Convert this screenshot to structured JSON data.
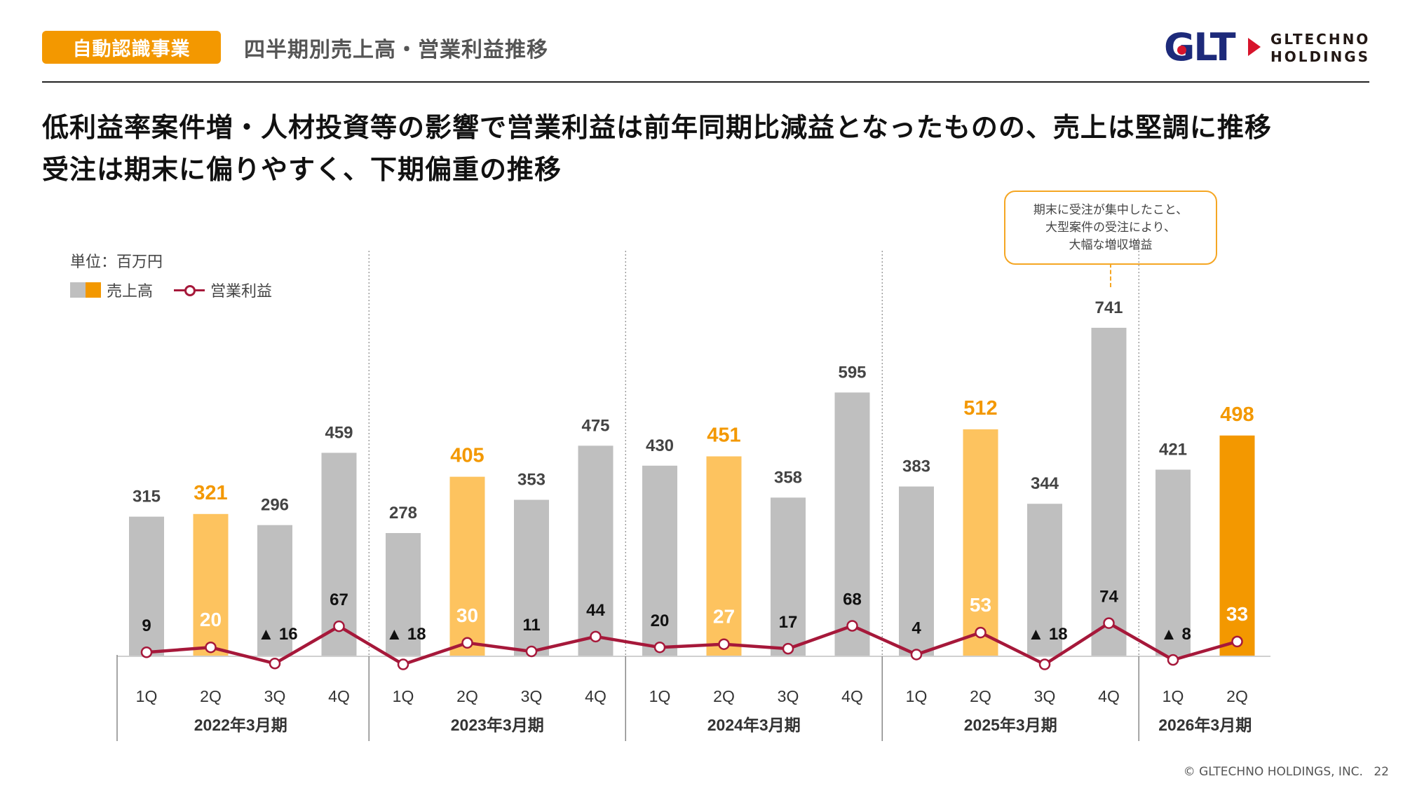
{
  "header": {
    "badge": "自動認識事業",
    "section_title": "四半期別売上高・営業利益推移",
    "logo_mark": "GLT",
    "logo_text_line1": "GLTECHNO",
    "logo_text_line2": "HOLDINGS"
  },
  "headline": {
    "line1": "低利益率案件増・人材投資等の影響で営業利益は前年同期比減益となったものの、売上は堅調に推移",
    "line2": "受注は期末に偏りやすく、下期偏重の推移"
  },
  "callout": {
    "line1": "期末に受注が集中したこと、",
    "line2": "大型案件の受注により、",
    "line3": "大幅な増収増益"
  },
  "colors": {
    "accent": "#f39800",
    "bar_gray": "#bfbfbf",
    "bar_light_orange": "#fdc35f",
    "bar_orange": "#f39800",
    "line": "#a6183a",
    "orange_label": "#f39800"
  },
  "chart_data": {
    "type": "bar",
    "title": "四半期別売上高・営業利益推移",
    "unit_label": "単位：百万円",
    "legend": [
      {
        "name": "売上高",
        "kind": "bar"
      },
      {
        "name": "営業利益",
        "kind": "line"
      }
    ],
    "groups": [
      {
        "label": "2022年3月期",
        "quarters": [
          "1Q",
          "2Q",
          "3Q",
          "4Q"
        ]
      },
      {
        "label": "2023年3月期",
        "quarters": [
          "1Q",
          "2Q",
          "3Q",
          "4Q"
        ]
      },
      {
        "label": "2024年3月期",
        "quarters": [
          "1Q",
          "2Q",
          "3Q",
          "4Q"
        ]
      },
      {
        "label": "2025年3月期",
        "quarters": [
          "1Q",
          "2Q",
          "3Q",
          "4Q"
        ]
      },
      {
        "label": "2026年3月期",
        "quarters": [
          "1Q",
          "2Q"
        ]
      }
    ],
    "categories": [
      "1Q",
      "2Q",
      "3Q",
      "4Q",
      "1Q",
      "2Q",
      "3Q",
      "4Q",
      "1Q",
      "2Q",
      "3Q",
      "4Q",
      "1Q",
      "2Q",
      "3Q",
      "4Q",
      "1Q",
      "2Q"
    ],
    "series": [
      {
        "name": "売上高",
        "type": "bar",
        "values": [
          315,
          321,
          296,
          459,
          278,
          405,
          353,
          475,
          430,
          451,
          358,
          595,
          383,
          512,
          344,
          741,
          421,
          498
        ],
        "highlight": [
          "none",
          "light",
          "none",
          "none",
          "none",
          "light",
          "none",
          "none",
          "none",
          "light",
          "none",
          "none",
          "none",
          "light",
          "none",
          "none",
          "none",
          "strong"
        ]
      },
      {
        "name": "営業利益",
        "type": "line",
        "values": [
          9,
          20,
          -16,
          67,
          -18,
          30,
          11,
          44,
          20,
          27,
          17,
          68,
          4,
          53,
          -18,
          74,
          -8,
          33
        ],
        "labels": [
          "9",
          "20",
          "▲ 16",
          "67",
          "▲ 18",
          "30",
          "11",
          "44",
          "20",
          "27",
          "17",
          "68",
          "4",
          "53",
          "▲ 18",
          "74",
          "▲ 8",
          "33"
        ]
      }
    ],
    "xlabel": "",
    "ylabel": "",
    "grid": false,
    "legend_position": "top-left"
  },
  "footer": {
    "copyright": "© GLTECHNO HOLDINGS, INC.",
    "page": "22"
  }
}
